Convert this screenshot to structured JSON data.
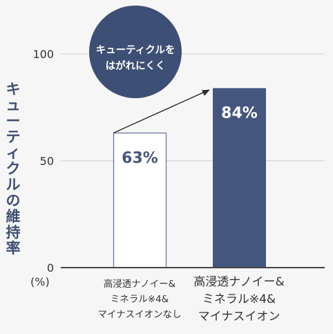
{
  "chart_data": {
    "type": "bar",
    "ylabel": "キューティクルの維持率",
    "unit": "(%)",
    "ylim": [
      0,
      100
    ],
    "yticks": [
      0,
      50,
      100
    ],
    "categories": [
      "高浸透ナノイー&\nミネラル※4&\nマイナスイオンなし",
      "高浸透ナノイー&\nミネラル※4&\nマイナスイオン"
    ],
    "values": [
      63,
      84
    ],
    "value_labels": [
      "63%",
      "84%"
    ],
    "annotation": "キューティクルを\nはがれにくく",
    "grid": true,
    "legend": "none"
  },
  "colors": {
    "accent": "#44567d",
    "bubble": "#3d4f74",
    "outline_bar": "#5d6f96",
    "grid": "#cfcfcf",
    "axis": "#444444"
  }
}
